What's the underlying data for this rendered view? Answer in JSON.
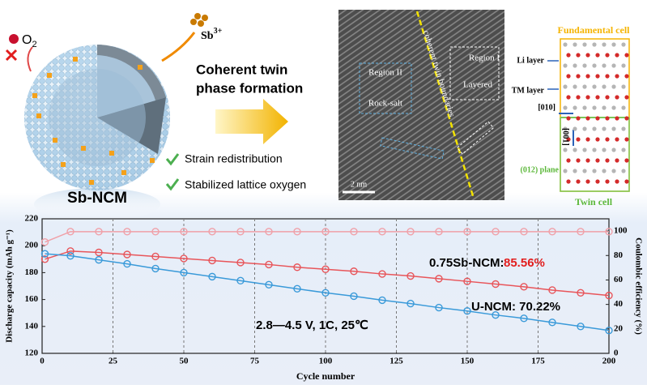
{
  "illustration": {
    "oxygen": {
      "symbol": "O",
      "subscript": "2"
    },
    "dopant": {
      "symbol": "Sb",
      "superscript": "3+"
    },
    "particle_label": "Sb-NCM",
    "process": [
      "Coherent twin",
      "phase formation"
    ],
    "benefits": [
      "Strain redistribution",
      "Stabilized lattice oxygen"
    ]
  },
  "tem_image": {
    "labels": [
      "Region II",
      "Rock-salt",
      "coherent twin boundaries",
      "Region I",
      "Layered"
    ],
    "scale_bar": "2 nm"
  },
  "crystal_model": {
    "top_title": "Fundamental cell",
    "labels": [
      "Li layer",
      "TM layer",
      "[010]",
      "[001]",
      "(012) plane"
    ],
    "bottom_title": "Twin cell"
  },
  "chart_data": {
    "type": "line",
    "x_label": "Cycle number",
    "y_label": "Discharge capacity (mAh g⁻¹)",
    "y2_label": "Coulombic efficiency (%)",
    "x": [
      1,
      10,
      20,
      30,
      40,
      50,
      60,
      70,
      80,
      90,
      100,
      110,
      120,
      130,
      140,
      150,
      160,
      170,
      180,
      190,
      200
    ],
    "series": [
      {
        "color": "#e8555a",
        "values": [
          190,
          196,
          195,
          193.5,
          192,
          190.5,
          189,
          187.5,
          186,
          184,
          182.5,
          181,
          179,
          177.5,
          175.5,
          173.5,
          171.5,
          169.5,
          167,
          165,
          163
        ]
      },
      {
        "color": "#3a9ad9",
        "values": [
          194,
          192.5,
          189.5,
          186.5,
          183,
          180,
          177,
          174,
          171,
          168,
          165,
          162.5,
          159.5,
          157,
          154,
          151.5,
          148.5,
          146,
          143,
          140,
          137
        ]
      },
      {
        "color": "#f0a0a8",
        "axis": "y2",
        "values": [
          91,
          99.5,
          99.5,
          99.5,
          99.5,
          99.5,
          99.5,
          99.5,
          99.5,
          99.5,
          99.5,
          99.5,
          99.5,
          99.5,
          99.5,
          99.5,
          99.5,
          99.5,
          99.5,
          99.5,
          99.5
        ]
      }
    ],
    "xlim": [
      0,
      200
    ],
    "xticks": [
      0,
      25,
      50,
      75,
      100,
      125,
      150,
      175,
      200
    ],
    "ylim": [
      120,
      220
    ],
    "yticks": [
      120,
      140,
      160,
      180,
      200,
      220
    ],
    "y2lim": [
      0,
      110
    ],
    "y2ticks": [
      0,
      20,
      40,
      60,
      80,
      100
    ],
    "xgrid": true,
    "annotations": [
      "0.75Sb-NCM:",
      "85.56%",
      "U-NCM: 70.22%",
      "2.8—4.5 V, 1C, 25℃"
    ]
  }
}
